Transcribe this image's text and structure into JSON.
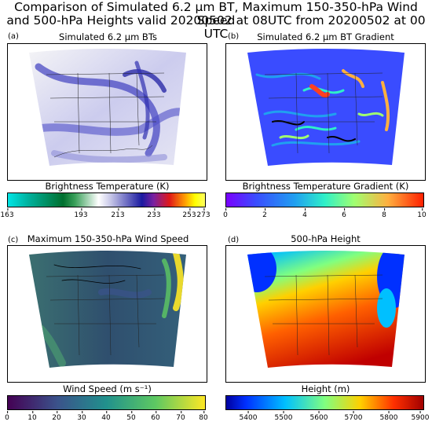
{
  "figure": {
    "title_line1": "Comparison of Simulated 6.2 μm BT, Maximum 150-350-hPa Wind Speed",
    "title_line2": "and 500-hPa Heights valid 20200502 at 08UTC from 20200502 at 00 UTC"
  },
  "panels": [
    {
      "letter": "(a)",
      "title": "Simulated 6.2 μm BTs",
      "cbar_label": "Brightness Temperature (K)",
      "ticks": [
        "163",
        "193",
        "213",
        "233",
        "253",
        "273"
      ],
      "cmap": "linear-gradient(to right,#00e5e5 0%,#00b3a0 10%,#006f2e 28%,#3aa05a 34%,#ffffff 46%,#c8c8e8 52%,#1a1aa0 68%,#7a20a0 74%,#e01818 82%,#ffa000 90%,#ffff00 95%,#ffff60 100%)"
    },
    {
      "letter": "(b)",
      "title": "Simulated 6.2 μm BT Gradient",
      "cbar_label": "Brightness Temperature Gradient (K)",
      "ticks": [
        "0",
        "2",
        "4",
        "6",
        "8",
        "10"
      ],
      "cmap": "linear-gradient(to right,#7a00ff 0%,#3a4cff 15%,#20a0f0 35%,#2ff0c8 50%,#a0ff70 65%,#ffb040 82%,#ff2000 100%)"
    },
    {
      "letter": "(c)",
      "title": "Maximum 150-350-hPa Wind Speed",
      "cbar_label": "Wind Speed (m s⁻¹)",
      "ticks": [
        "0",
        "10",
        "20",
        "30",
        "40",
        "50",
        "60",
        "70",
        "80"
      ],
      "cmap": "linear-gradient(to right,#440154 0%,#3b528b 25%,#21918c 50%,#5ec962 75%,#fde725 100%)"
    },
    {
      "letter": "(d)",
      "title": "500-hPa Height",
      "cbar_label": "Height (m)",
      "ticks": [
        "5400",
        "5500",
        "5600",
        "5700",
        "5800",
        "5900"
      ],
      "cmap": "linear-gradient(to right,#0000a0 0%,#0030ff 10%,#00c0ff 30%,#80ff80 50%,#ffd000 68%,#ff3000 85%,#a00000 100%)"
    }
  ]
}
